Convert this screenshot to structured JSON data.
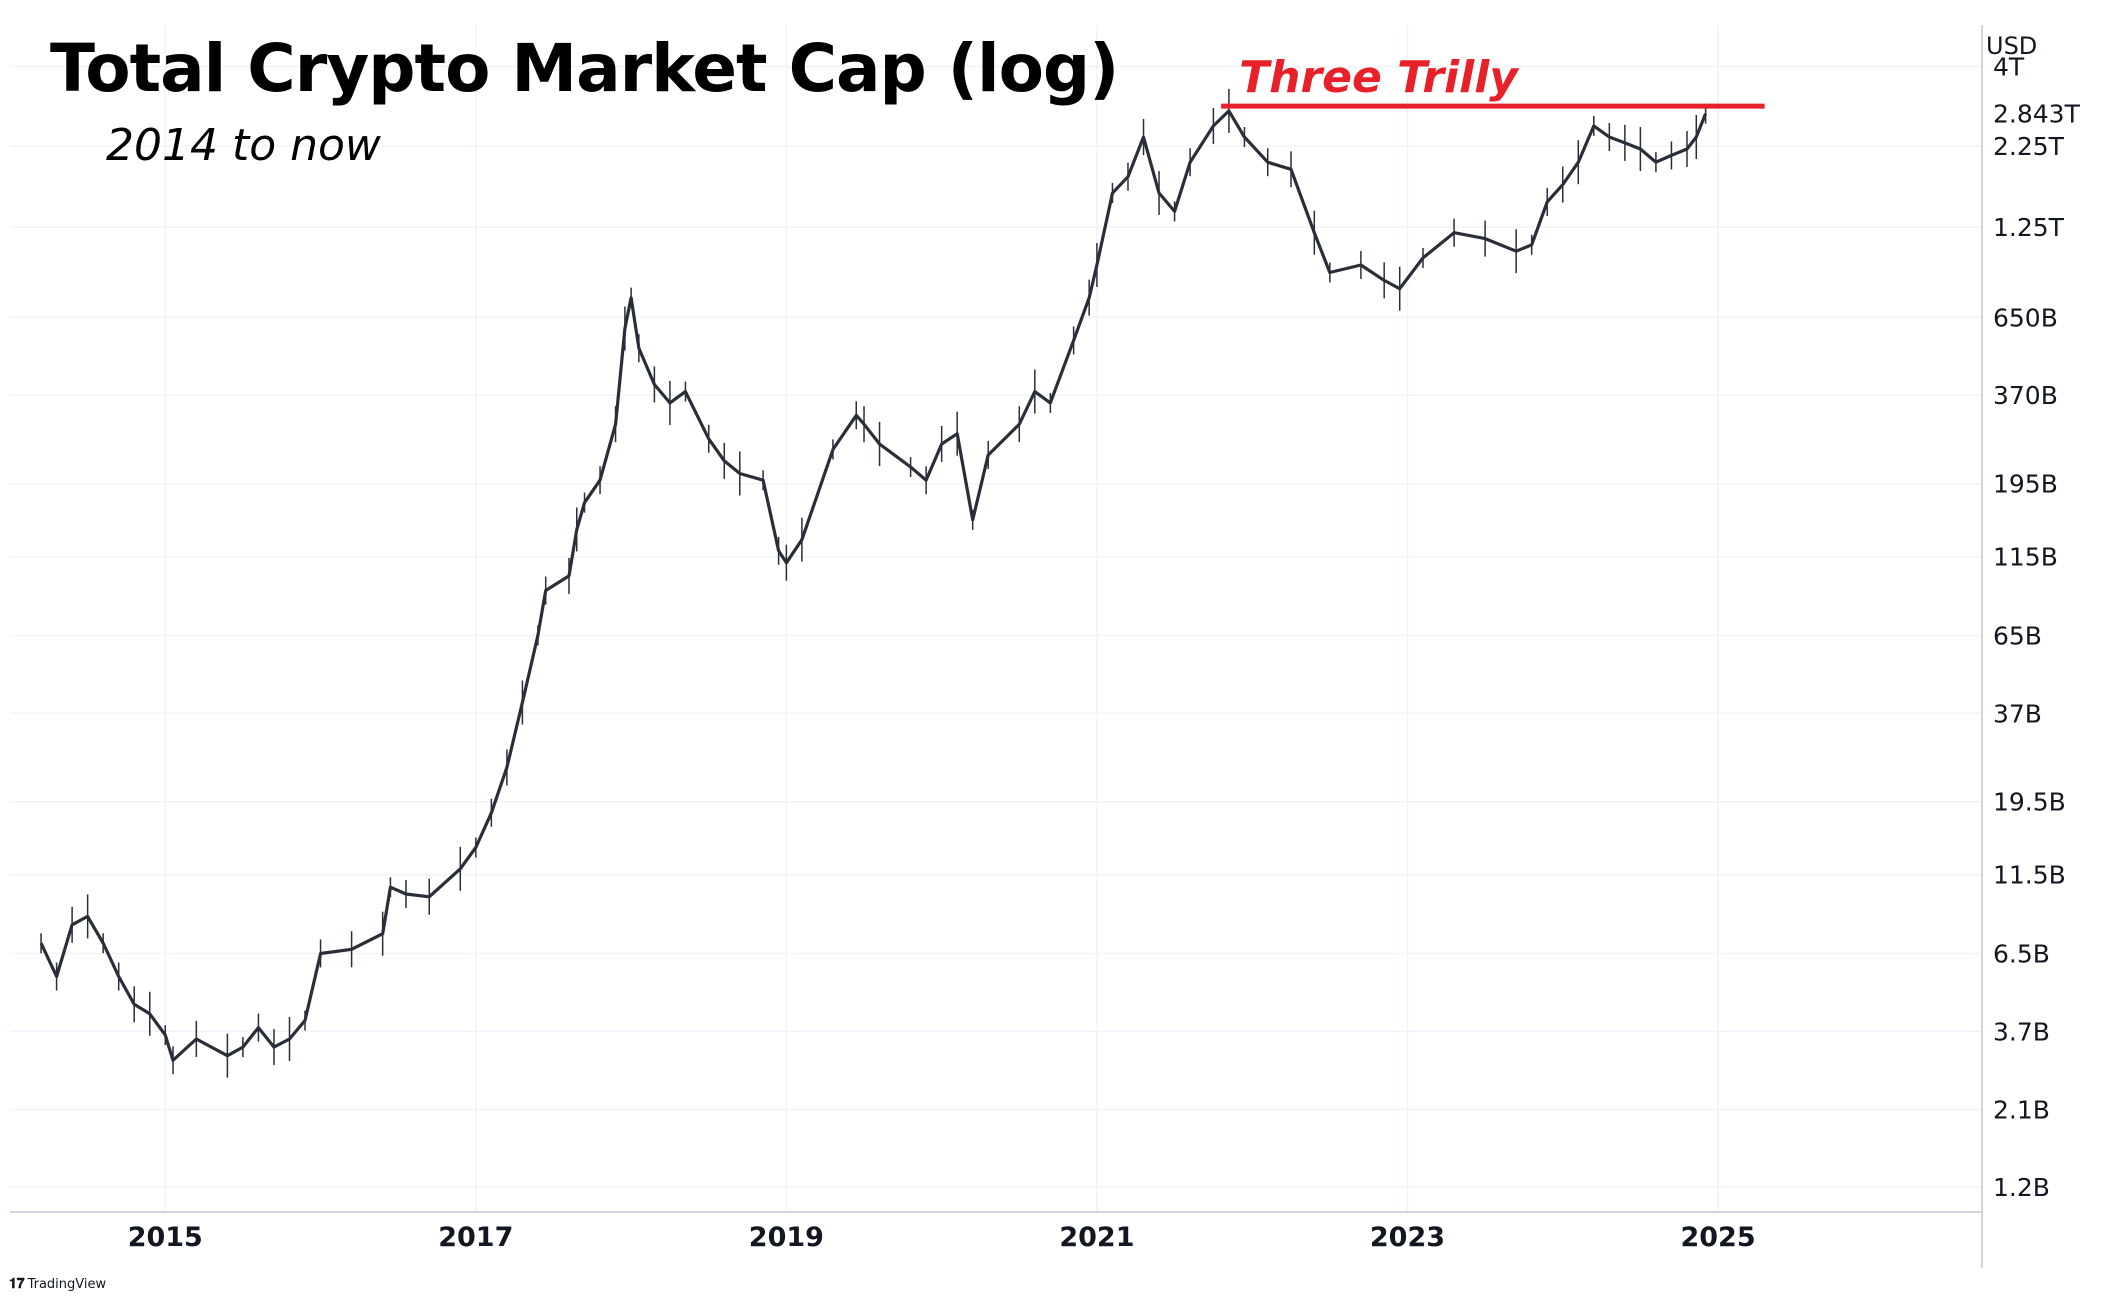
{
  "chart_data": {
    "type": "line",
    "title": "Total Crypto Market Cap (log)",
    "subtitle": "2014 to now",
    "unit": "USD",
    "yscale": "log",
    "ylim": [
      1000000000.0,
      5400000000000.0
    ],
    "xlim": [
      2014.0,
      2026.7
    ],
    "grid": true,
    "y_ticks": [
      {
        "label": "4T",
        "value": 4000000000000.0
      },
      {
        "label": "2.25T",
        "value": 2250000000000.0
      },
      {
        "label": "1.25T",
        "value": 1250000000000.0
      },
      {
        "label": "650B",
        "value": 650000000000.0
      },
      {
        "label": "370B",
        "value": 370000000000.0
      },
      {
        "label": "195B",
        "value": 195000000000.0
      },
      {
        "label": "115B",
        "value": 115000000000.0
      },
      {
        "label": "65B",
        "value": 65000000000.0
      },
      {
        "label": "37B",
        "value": 37000000000.0
      },
      {
        "label": "19.5B",
        "value": 19500000000.0
      },
      {
        "label": "11.5B",
        "value": 11500000000.0
      },
      {
        "label": "6.5B",
        "value": 6500000000.0
      },
      {
        "label": "3.7B",
        "value": 3700000000.0
      },
      {
        "label": "2.1B",
        "value": 2100000000.0
      },
      {
        "label": "1.2B",
        "value": 1200000000.0
      }
    ],
    "x_ticks": [
      {
        "label": "2015",
        "value": 2015
      },
      {
        "label": "2017",
        "value": 2017
      },
      {
        "label": "2019",
        "value": 2019
      },
      {
        "label": "2021",
        "value": 2021
      },
      {
        "label": "2023",
        "value": 2023
      },
      {
        "label": "2025",
        "value": 2025
      }
    ],
    "price_label": {
      "text": "2.843T",
      "value": 2843000000000.0
    },
    "annotation": {
      "text": "Three Trilly",
      "value": 3000000000000.0,
      "x_start": 2021.8,
      "x_end": 2025.3,
      "color": "#e8202a"
    },
    "series": [
      {
        "x": [
          2014.2,
          2014.3,
          2014.4,
          2014.5,
          2014.6,
          2014.7,
          2014.8,
          2014.9,
          2015.0,
          2015.05,
          2015.2,
          2015.4,
          2015.5,
          2015.6,
          2015.7,
          2015.8,
          2015.9,
          2016.0,
          2016.2,
          2016.4,
          2016.45,
          2016.55,
          2016.7,
          2016.9,
          2017.0,
          2017.1,
          2017.2,
          2017.3,
          2017.4,
          2017.45,
          2017.6,
          2017.65,
          2017.7,
          2017.8,
          2017.9,
          2017.96,
          2018.0,
          2018.05,
          2018.15,
          2018.25,
          2018.35,
          2018.5,
          2018.6,
          2018.7,
          2018.85,
          2018.95,
          2019.0,
          2019.1,
          2019.3,
          2019.45,
          2019.5,
          2019.6,
          2019.8,
          2019.9,
          2020.0,
          2020.1,
          2020.2,
          2020.3,
          2020.5,
          2020.6,
          2020.7,
          2020.85,
          2020.95,
          2021.0,
          2021.1,
          2021.2,
          2021.3,
          2021.4,
          2021.5,
          2021.6,
          2021.75,
          2021.85,
          2021.95,
          2022.1,
          2022.25,
          2022.4,
          2022.5,
          2022.7,
          2022.85,
          2022.95,
          2023.1,
          2023.3,
          2023.5,
          2023.7,
          2023.8,
          2023.9,
          2024.0,
          2024.1,
          2024.2,
          2024.3,
          2024.4,
          2024.5,
          2024.6,
          2024.7,
          2024.8,
          2024.86,
          2024.92
        ],
        "y": [
          7000000000.0,
          5500000000.0,
          8000000000.0,
          8500000000.0,
          7000000000.0,
          5500000000.0,
          4500000000.0,
          4200000000.0,
          3600000000.0,
          3000000000.0,
          3500000000.0,
          3100000000.0,
          3300000000.0,
          3800000000.0,
          3300000000.0,
          3500000000.0,
          4000000000.0,
          6500000000.0,
          6700000000.0,
          7500000000.0,
          10500000000.0,
          10000000000.0,
          9800000000.0,
          12000000000.0,
          14000000000.0,
          18000000000.0,
          25000000000.0,
          40000000000.0,
          65000000000.0,
          90000000000.0,
          100000000000.0,
          140000000000.0,
          170000000000.0,
          200000000000.0,
          300000000000.0,
          600000000000.0,
          750000000000.0,
          520000000000.0,
          400000000000.0,
          350000000000.0,
          380000000000.0,
          270000000000.0,
          230000000000.0,
          210000000000.0,
          200000000000.0,
          120000000000.0,
          110000000000.0,
          130000000000.0,
          250000000000.0,
          320000000000.0,
          300000000000.0,
          260000000000.0,
          220000000000.0,
          200000000000.0,
          260000000000.0,
          280000000000.0,
          150000000000.0,
          240000000000.0,
          300000000000.0,
          380000000000.0,
          350000000000.0,
          550000000000.0,
          750000000000.0,
          950000000000.0,
          1600000000000.0,
          1800000000000.0,
          2400000000000.0,
          1600000000000.0,
          1400000000000.0,
          2000000000000.0,
          2600000000000.0,
          2900000000000.0,
          2400000000000.0,
          2000000000000.0,
          1900000000000.0,
          1200000000000.0,
          900000000000.0,
          950000000000.0,
          850000000000.0,
          800000000000.0,
          1000000000000.0,
          1200000000000.0,
          1150000000000.0,
          1050000000000.0,
          1100000000000.0,
          1500000000000.0,
          1700000000000.0,
          2000000000000.0,
          2600000000000.0,
          2400000000000.0,
          2300000000000.0,
          2200000000000.0,
          2000000000000.0,
          2100000000000.0,
          2200000000000.0,
          2400000000000.0,
          2843000000000.0
        ]
      }
    ]
  }
}
